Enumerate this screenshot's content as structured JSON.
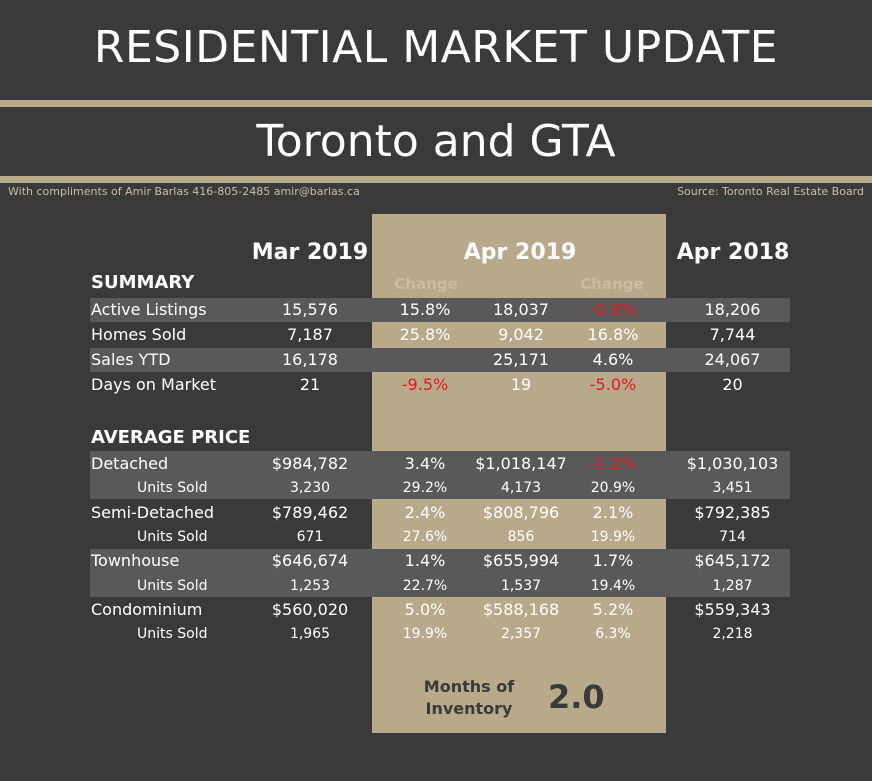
{
  "header": {
    "title": "RESIDENTIAL MARKET UPDATE",
    "subtitle": "Toronto and GTA",
    "credit": "With compliments of Amir Barlas 416-805-2485 amir@barlas.ca",
    "source": "Source: Toronto Real Estate Board"
  },
  "columns": {
    "mar2019": "Mar 2019",
    "apr2019": "Apr 2019",
    "apr2018": "Apr 2018",
    "change": "Change"
  },
  "sections": {
    "summary": "SUMMARY",
    "average_price": "AVERAGE PRICE"
  },
  "summary_rows": [
    {
      "label": "Active Listings",
      "mar": "15,576",
      "chg1": "15.8%",
      "apr": "18,037",
      "chg2": "-0.9%",
      "prev": "18,206"
    },
    {
      "label": "Homes Sold",
      "mar": "7,187",
      "chg1": "25.8%",
      "apr": "9,042",
      "chg2": "16.8%",
      "prev": "7,744"
    },
    {
      "label": "Sales YTD",
      "mar": "16,178",
      "chg1": "",
      "apr": "25,171",
      "chg2": "4.6%",
      "prev": "24,067"
    },
    {
      "label": "Days on Market",
      "mar": "21",
      "chg1": "-9.5%",
      "apr": "19",
      "chg2": "-5.0%",
      "prev": "20"
    }
  ],
  "price_rows": [
    {
      "label": "Detached",
      "mar": "$984,782",
      "chg1": "3.4%",
      "apr": "$1,018,147",
      "chg2": "-1.2%",
      "prev": "$1,030,103"
    },
    {
      "label": "Units Sold",
      "mar": "3,230",
      "chg1": "29.2%",
      "apr": "4,173",
      "chg2": "20.9%",
      "prev": "3,451"
    },
    {
      "label": "Semi-Detached",
      "mar": "$789,462",
      "chg1": "2.4%",
      "apr": "$808,796",
      "chg2": "2.1%",
      "prev": "$792,385"
    },
    {
      "label": "Units Sold",
      "mar": "671",
      "chg1": "27.6%",
      "apr": "856",
      "chg2": "19.9%",
      "prev": "714"
    },
    {
      "label": "Townhouse",
      "mar": "$646,674",
      "chg1": "1.4%",
      "apr": "$655,994",
      "chg2": "1.7%",
      "prev": "$645,172"
    },
    {
      "label": "Units Sold",
      "mar": "1,253",
      "chg1": "22.7%",
      "apr": "1,537",
      "chg2": "19.4%",
      "prev": "1,287"
    },
    {
      "label": "Condominium",
      "mar": "$560,020",
      "chg1": "5.0%",
      "apr": "$588,168",
      "chg2": "5.2%",
      "prev": "$559,343"
    },
    {
      "label": "Units Sold",
      "mar": "1,965",
      "chg1": "19.9%",
      "apr": "2,357",
      "chg2": "6.3%",
      "prev": "2,218"
    }
  ],
  "months_of_inventory": {
    "label": "Months of Inventory",
    "value": "2.0"
  },
  "colors": {
    "background": "#3a3a3a",
    "accent": "#b8a98b",
    "band": "#595959",
    "negative": "#e01b1b"
  }
}
